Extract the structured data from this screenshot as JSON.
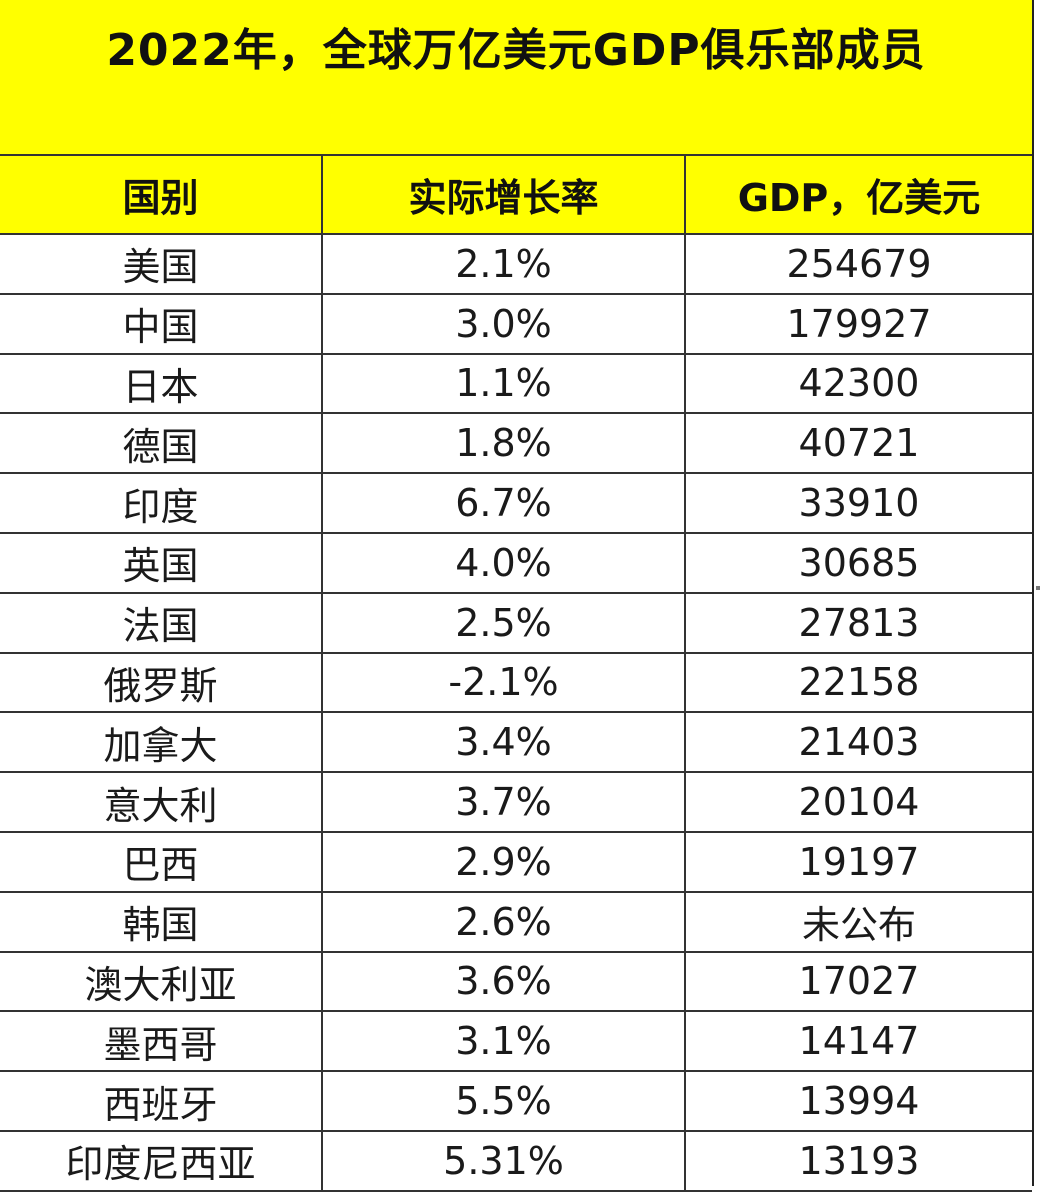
{
  "title": "2022年，全球万亿美元GDP俱乐部成员",
  "columns": [
    "国别",
    "实际增长率",
    "GDP，亿美元"
  ],
  "rows": [
    {
      "country": "美国",
      "growth": "2.1%",
      "gdp": "254679"
    },
    {
      "country": "中国",
      "growth": "3.0%",
      "gdp": "179927"
    },
    {
      "country": "日本",
      "growth": "1.1%",
      "gdp": "42300"
    },
    {
      "country": "德国",
      "growth": "1.8%",
      "gdp": "40721"
    },
    {
      "country": "印度",
      "growth": "6.7%",
      "gdp": "33910"
    },
    {
      "country": "英国",
      "growth": "4.0%",
      "gdp": "30685"
    },
    {
      "country": "法国",
      "growth": "2.5%",
      "gdp": "27813"
    },
    {
      "country": "俄罗斯",
      "growth": "-2.1%",
      "gdp": "22158"
    },
    {
      "country": "加拿大",
      "growth": "3.4%",
      "gdp": "21403"
    },
    {
      "country": "意大利",
      "growth": "3.7%",
      "gdp": "20104"
    },
    {
      "country": "巴西",
      "growth": "2.9%",
      "gdp": "19197"
    },
    {
      "country": "韩国",
      "growth": "2.6%",
      "gdp": "未公布"
    },
    {
      "country": "澳大利亚",
      "growth": "3.6%",
      "gdp": "17027"
    },
    {
      "country": "墨西哥",
      "growth": "3.1%",
      "gdp": "14147"
    },
    {
      "country": "西班牙",
      "growth": "5.5%",
      "gdp": "13994"
    },
    {
      "country": "印度尼西亚",
      "growth": "5.31%",
      "gdp": "13193"
    }
  ],
  "colors": {
    "header_background": "#ffff00",
    "cell_background": "#ffffff",
    "grid_line": "#333333",
    "text": "#1a1a1a"
  }
}
